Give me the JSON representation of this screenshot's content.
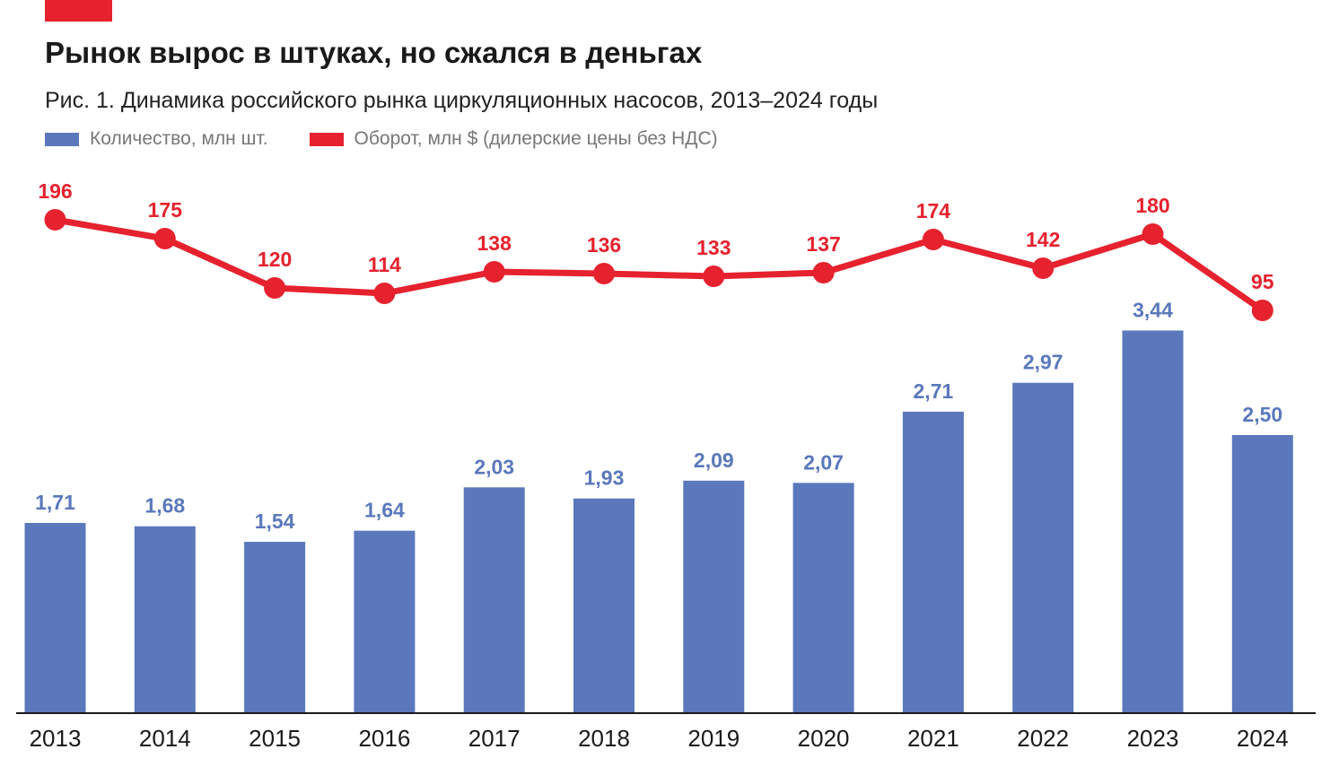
{
  "header": {
    "title": "Рынок вырос в штуках, но сжался в деньгах",
    "subtitle": "Рис. 1. Динамика российского рынка циркуляционных насосов, 2013–2024 годы"
  },
  "colors": {
    "accent": "#e5222e",
    "bars": "#5a78bb",
    "line": "#e5222e"
  },
  "chart_data": {
    "type": "bar",
    "categories": [
      "2013",
      "2014",
      "2015",
      "2016",
      "2017",
      "2018",
      "2019",
      "2020",
      "2021",
      "2022",
      "2023",
      "2024"
    ],
    "series": [
      {
        "name": "Количество, млн шт.",
        "type": "bar",
        "values": [
          1.71,
          1.68,
          1.54,
          1.64,
          2.03,
          1.93,
          2.09,
          2.07,
          2.71,
          2.97,
          3.44,
          2.5
        ],
        "labels": [
          "1,71",
          "1,68",
          "1,54",
          "1,64",
          "2,03",
          "1,93",
          "2,09",
          "2,07",
          "2,71",
          "2,97",
          "3,44",
          "2,50"
        ]
      },
      {
        "name": "Оборот, млн $ (дилерские цены без НДС)",
        "type": "line",
        "values": [
          196,
          175,
          120,
          114,
          138,
          136,
          133,
          137,
          174,
          142,
          180,
          95
        ],
        "labels": [
          "196",
          "175",
          "120",
          "114",
          "138",
          "136",
          "133",
          "137",
          "174",
          "142",
          "180",
          "95"
        ]
      }
    ],
    "legend": "top-left",
    "grid": false
  }
}
